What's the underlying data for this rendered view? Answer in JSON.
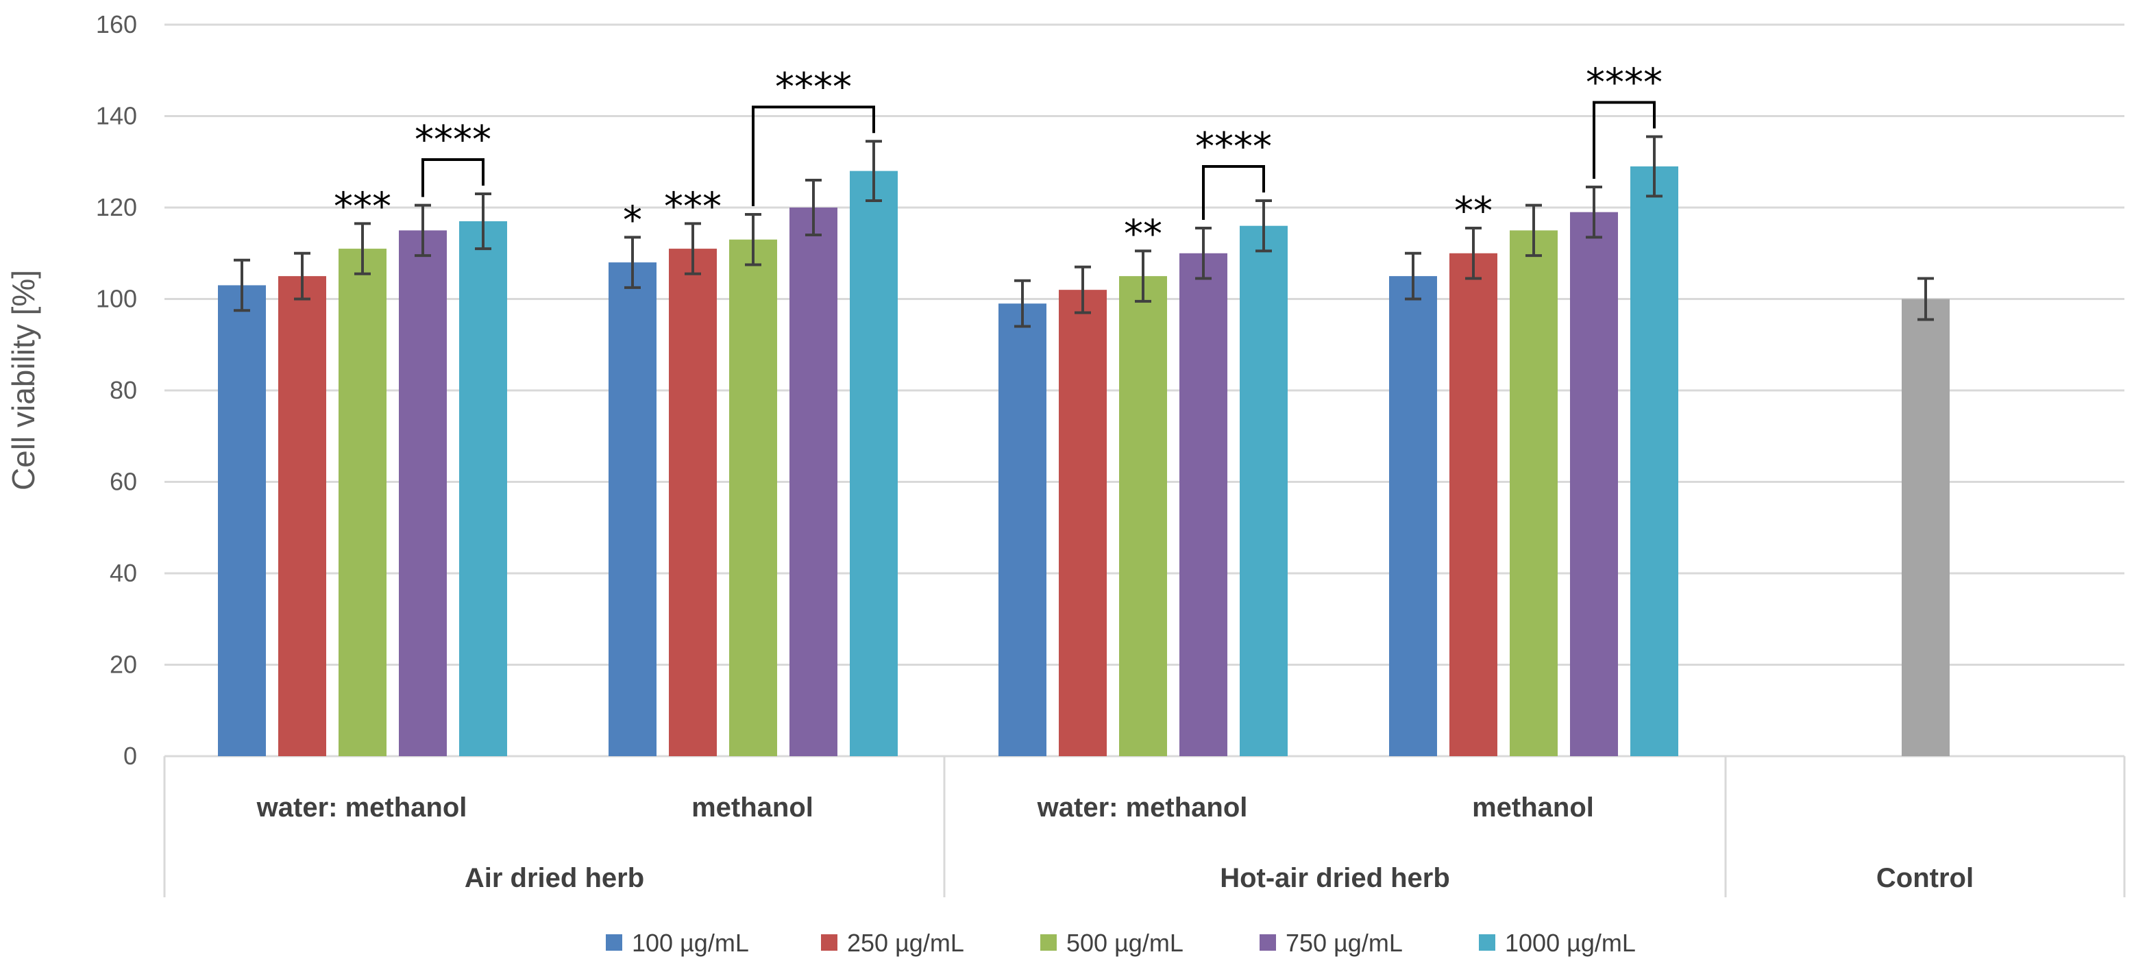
{
  "chart_data": {
    "type": "bar",
    "ylabel": "Cell viability [%]",
    "ylim": [
      0,
      160
    ],
    "yticks": [
      0,
      20,
      40,
      60,
      80,
      100,
      120,
      140,
      160
    ],
    "grid": true,
    "legend_position": "bottom",
    "series": [
      {
        "name": "100  µg/mL",
        "color": "#4F81BD"
      },
      {
        "name": "250  µg/mL",
        "color": "#C0504D"
      },
      {
        "name": "500  µg/mL",
        "color": "#9BBB59"
      },
      {
        "name": "750  µg/mL",
        "color": "#8064A2"
      },
      {
        "name": "1000  µg/mL",
        "color": "#4BACC6"
      }
    ],
    "control_color": "#A5A5A5",
    "groups": [
      {
        "outer": "Air dried herb",
        "sub": "water: methanol",
        "values": [
          103,
          105,
          111,
          115,
          117
        ],
        "errors": [
          5.5,
          5,
          5.5,
          5.5,
          6
        ],
        "stars": [
          "",
          "",
          "***",
          "",
          ""
        ],
        "bracket": {
          "from": 3,
          "to": 4,
          "label": "****"
        }
      },
      {
        "outer": "Air dried herb",
        "sub": "methanol",
        "values": [
          108,
          111,
          113,
          120,
          128
        ],
        "errors": [
          5.5,
          5.5,
          5.5,
          6,
          6.5
        ],
        "stars": [
          "*",
          "***",
          "",
          "",
          ""
        ],
        "bracket": {
          "from": 2,
          "to": 4,
          "label": "****"
        }
      },
      {
        "outer": "Hot-air dried herb",
        "sub": "water: methanol",
        "values": [
          99,
          102,
          105,
          110,
          116
        ],
        "errors": [
          5,
          5,
          5.5,
          5.5,
          5.5
        ],
        "stars": [
          "",
          "",
          "**",
          "",
          ""
        ],
        "bracket": {
          "from": 3,
          "to": 4,
          "label": "****"
        }
      },
      {
        "outer": "Hot-air dried herb",
        "sub": "methanol",
        "values": [
          105,
          110,
          115,
          119,
          129
        ],
        "errors": [
          5,
          5.5,
          5.5,
          5.5,
          6.5
        ],
        "stars": [
          "",
          "**",
          "",
          "",
          ""
        ],
        "bracket": {
          "from": 3,
          "to": 4,
          "label": "****"
        }
      }
    ],
    "control": {
      "label": "Control",
      "value": 100,
      "error": 4.5
    },
    "outer_categories": [
      "Air dried herb",
      "Hot-air dried herb",
      "Control"
    ]
  }
}
